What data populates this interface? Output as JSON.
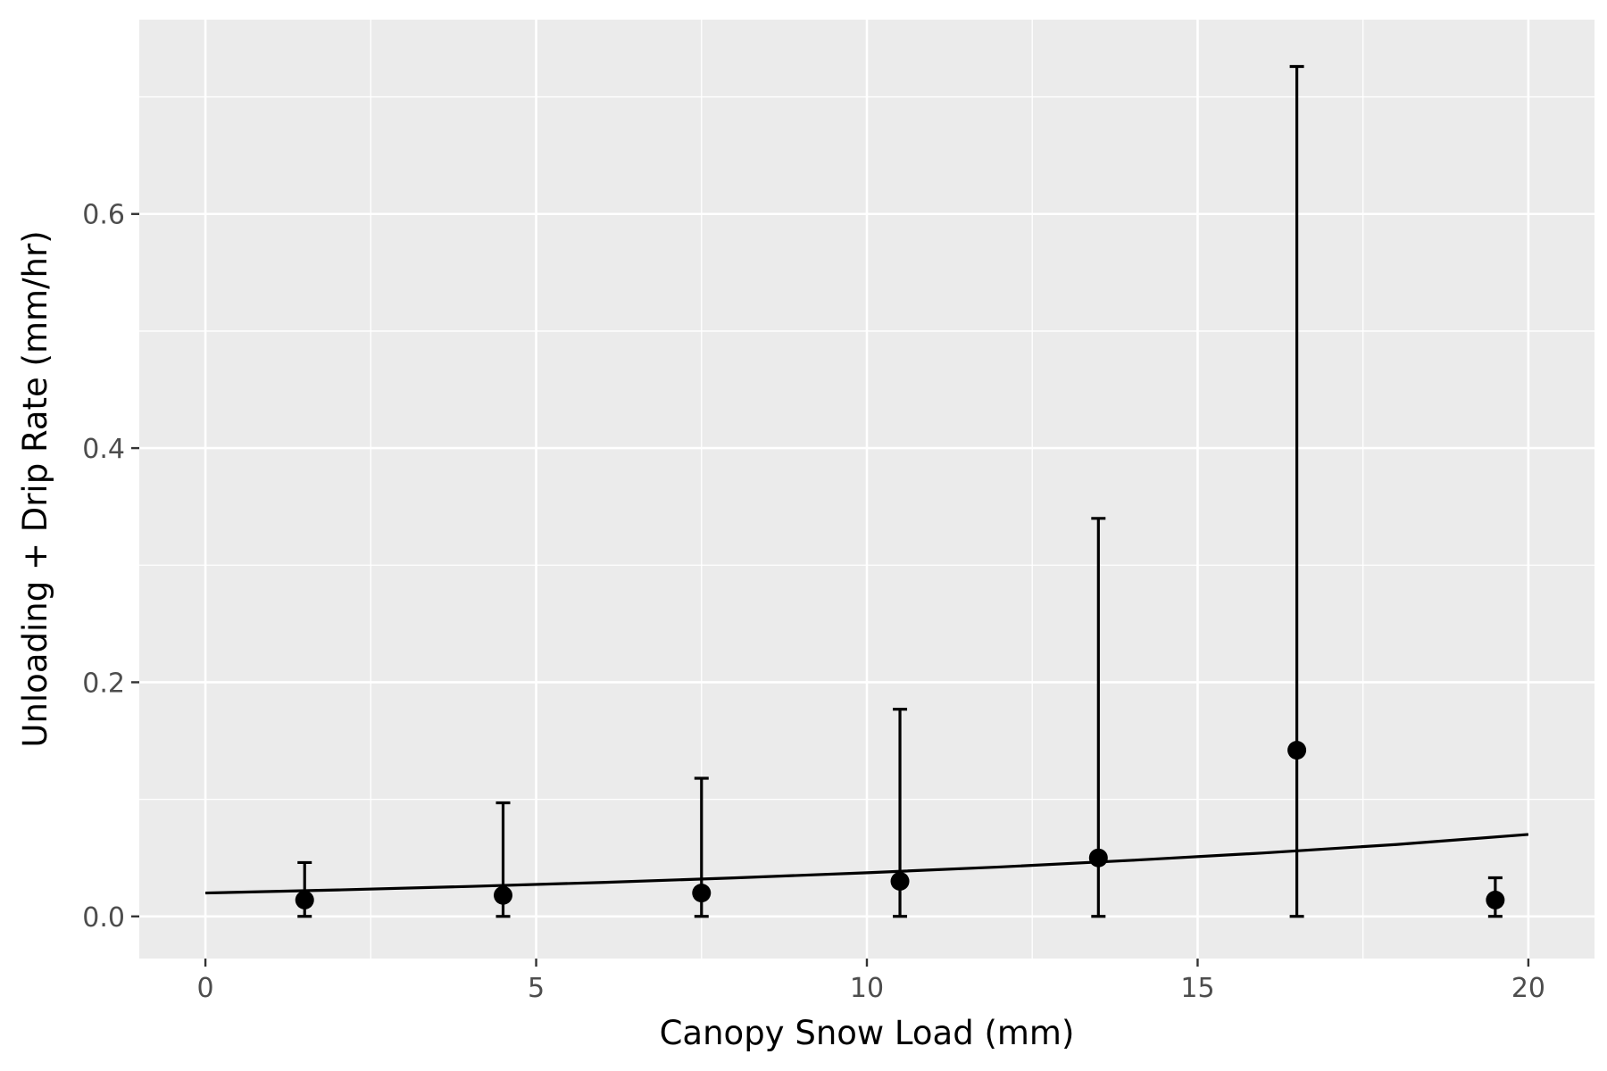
{
  "chart_data": {
    "type": "scatter",
    "title": "",
    "xlabel": "Canopy Snow Load (mm)",
    "ylabel": "Unloading + Drip Rate (mm/hr)",
    "xlim": [
      -1,
      21
    ],
    "ylim": [
      -0.036,
      0.766
    ],
    "x_ticks": [
      0,
      5,
      10,
      15,
      20
    ],
    "x_tick_labels": [
      "0",
      "5",
      "10",
      "15",
      "20"
    ],
    "y_ticks": [
      0.0,
      0.2,
      0.4,
      0.6
    ],
    "y_tick_labels": [
      "0.0",
      "0.2",
      "0.4",
      "0.6"
    ],
    "x_minor_ticks": [
      2.5,
      7.5,
      12.5,
      17.5
    ],
    "y_minor_ticks": [
      0.1,
      0.3,
      0.5,
      0.7
    ],
    "grid": true,
    "background_color": "#ebebeb",
    "grid_color": "#ffffff",
    "point_color": "#000000",
    "points": [
      {
        "x": 1.5,
        "y": 0.014,
        "ymin": 0.0,
        "ymax": 0.046
      },
      {
        "x": 4.5,
        "y": 0.018,
        "ymin": 0.0,
        "ymax": 0.097
      },
      {
        "x": 7.5,
        "y": 0.02,
        "ymin": 0.0,
        "ymax": 0.118
      },
      {
        "x": 10.5,
        "y": 0.03,
        "ymin": 0.0,
        "ymax": 0.177
      },
      {
        "x": 13.5,
        "y": 0.05,
        "ymin": 0.0,
        "ymax": 0.34
      },
      {
        "x": 16.5,
        "y": 0.142,
        "ymin": 0.0,
        "ymax": 0.726
      },
      {
        "x": 19.5,
        "y": 0.014,
        "ymin": 0.0,
        "ymax": 0.033
      }
    ],
    "fit_line": {
      "type": "exponential",
      "x": [
        0,
        2,
        4,
        6,
        8,
        10,
        12,
        14,
        16,
        18,
        20
      ],
      "y": [
        0.02,
        0.0226,
        0.0256,
        0.029,
        0.0329,
        0.0373,
        0.0422,
        0.0479,
        0.0542,
        0.0614,
        0.07
      ]
    }
  }
}
